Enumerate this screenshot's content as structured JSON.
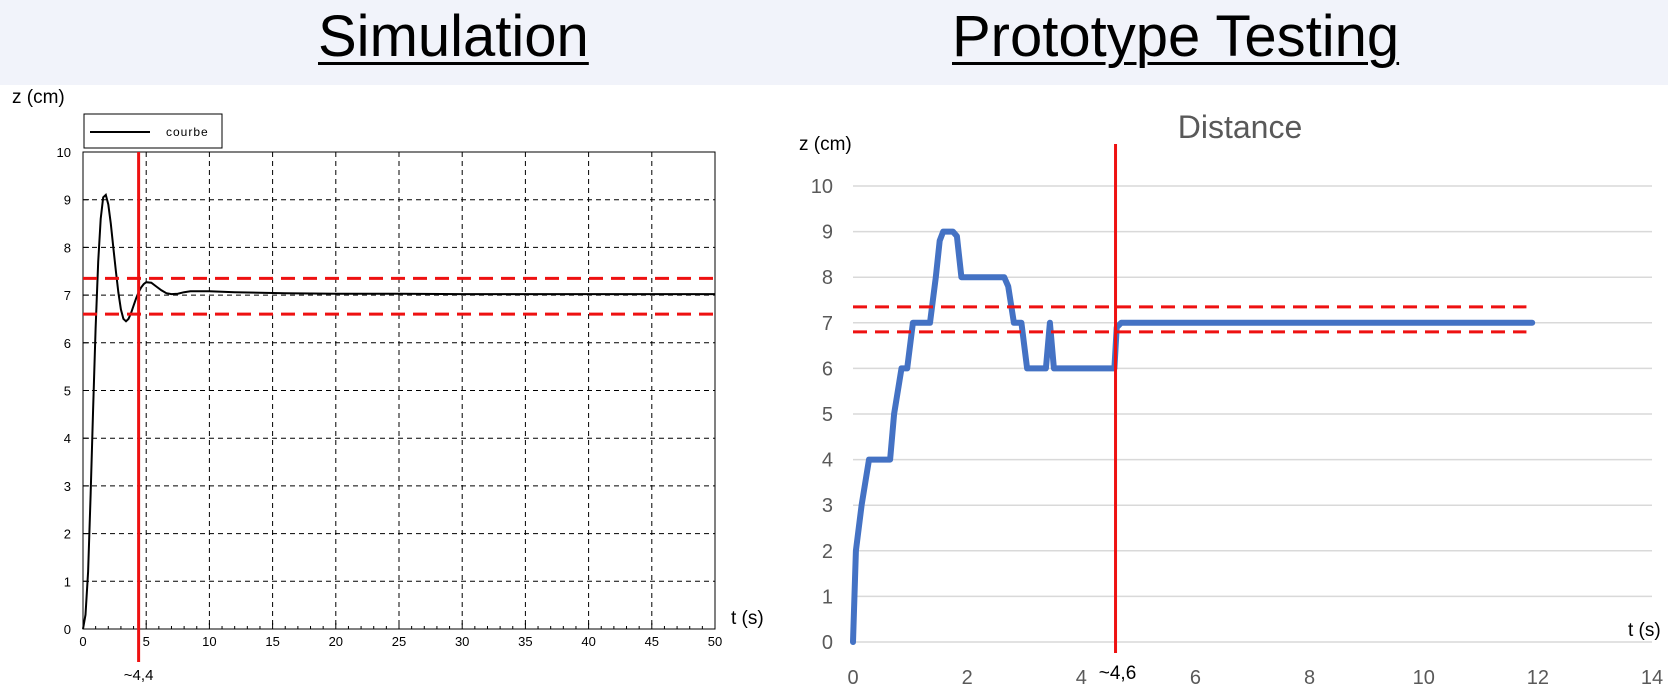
{
  "headings": {
    "left": "Simulation",
    "right": "Prototype Testing"
  },
  "colors": {
    "threshold": "#ee1111",
    "sim_curve": "#000000",
    "proto_curve": "#4472c4",
    "grid_right": "#d9d9d9",
    "axis_text_right": "#595959"
  },
  "chart_data": [
    {
      "type": "line",
      "panel": "Simulation",
      "title": "",
      "xlabel": "t (s)",
      "ylabel": "z (cm)",
      "xlim": [
        0,
        50
      ],
      "ylim": [
        0,
        10
      ],
      "x_ticks": [
        0,
        5,
        10,
        15,
        20,
        25,
        30,
        35,
        40,
        45,
        50
      ],
      "y_ticks": [
        0,
        1,
        2,
        3,
        4,
        5,
        6,
        7,
        8,
        9,
        10
      ],
      "grid": "dashed",
      "legend": {
        "position": "top-left",
        "entries": [
          "courbe"
        ]
      },
      "series": [
        {
          "name": "courbe",
          "x": [
            0,
            0.2,
            0.4,
            0.6,
            0.8,
            1.0,
            1.2,
            1.4,
            1.6,
            1.8,
            2.0,
            2.2,
            2.4,
            2.6,
            2.8,
            3.0,
            3.2,
            3.4,
            3.6,
            3.8,
            4.0,
            4.2,
            4.4,
            4.6,
            4.8,
            5.0,
            5.4,
            5.8,
            6.2,
            6.6,
            7.0,
            7.5,
            8.0,
            8.5,
            9.0,
            10,
            12,
            14,
            16,
            20,
            25,
            30,
            35,
            40,
            45,
            50
          ],
          "y": [
            0,
            0.3,
            1.2,
            2.8,
            4.6,
            6.3,
            7.7,
            8.6,
            9.05,
            9.1,
            8.9,
            8.5,
            8.0,
            7.5,
            7.05,
            6.7,
            6.5,
            6.45,
            6.5,
            6.62,
            6.78,
            6.93,
            7.06,
            7.16,
            7.23,
            7.27,
            7.26,
            7.18,
            7.1,
            7.04,
            7.02,
            7.03,
            7.06,
            7.08,
            7.08,
            7.08,
            7.06,
            7.05,
            7.04,
            7.03,
            7.03,
            7.02,
            7.02,
            7.02,
            7.02,
            7.02
          ]
        }
      ],
      "threshold_lines": [
        7.35,
        6.6
      ],
      "marker": {
        "x": 4.4,
        "label": "~4,4"
      }
    },
    {
      "type": "line",
      "panel": "Prototype Testing",
      "title": "Distance",
      "xlabel": "t (s)",
      "ylabel": "z (cm)",
      "xlim": [
        0,
        14
      ],
      "ylim": [
        0,
        10
      ],
      "x_ticks": [
        0,
        2,
        4,
        6,
        8,
        10,
        12,
        14
      ],
      "y_ticks": [
        0,
        1,
        2,
        3,
        4,
        5,
        6,
        7,
        8,
        9,
        10
      ],
      "grid": "horizontal",
      "series": [
        {
          "x": [
            0,
            0.05,
            0.15,
            0.28,
            0.35,
            0.65,
            0.72,
            0.85,
            0.95,
            1.05,
            1.12,
            1.35,
            1.45,
            1.52,
            1.58,
            1.75,
            1.82,
            1.9,
            2.0,
            2.65,
            2.72,
            2.82,
            2.95,
            3.05,
            3.12,
            3.38,
            3.45,
            3.52,
            3.6,
            4.58,
            4.62,
            4.7,
            5.0,
            8.0,
            11.9
          ],
          "y": [
            0,
            2.0,
            3.0,
            4.0,
            4.0,
            4.0,
            5.0,
            6.0,
            6.0,
            7.0,
            7.0,
            7.0,
            8.0,
            8.8,
            9.0,
            9.0,
            8.9,
            8.0,
            8.0,
            8.0,
            7.8,
            7.0,
            7.0,
            6.0,
            6.0,
            6.0,
            7.0,
            6.0,
            6.0,
            6.0,
            6.9,
            7.0,
            7.0,
            7.0,
            7.0
          ]
        }
      ],
      "threshold_lines": [
        7.35,
        6.8
      ],
      "threshold_x_range": [
        0,
        11.8
      ],
      "marker": {
        "x": 4.6,
        "label": "~4,6"
      }
    }
  ]
}
